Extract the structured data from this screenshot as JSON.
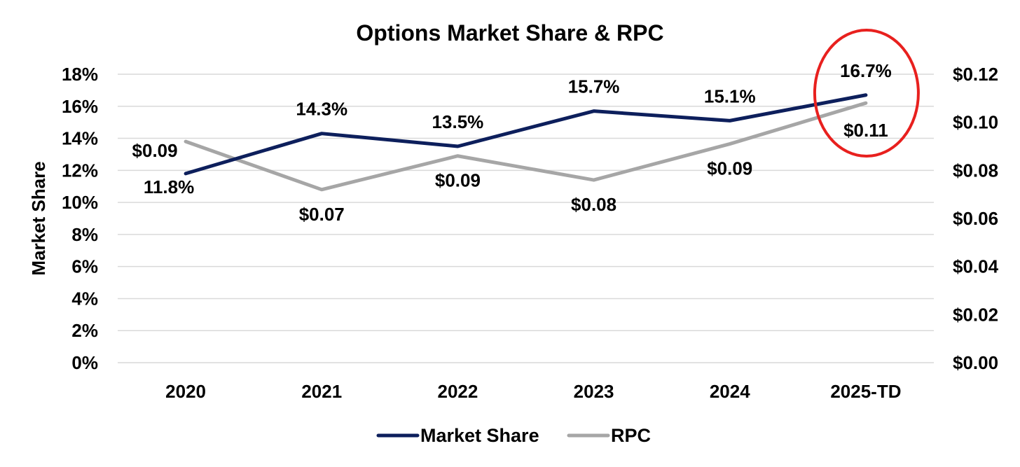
{
  "chart_data": {
    "type": "line",
    "title": "Options Market Share & RPC",
    "ylabel": "Market Share",
    "categories": [
      "2020",
      "2021",
      "2022",
      "2023",
      "2024",
      "2025-TD"
    ],
    "y_left": {
      "min": 0,
      "max": 18,
      "step": 2,
      "ticks": [
        "0%",
        "2%",
        "4%",
        "6%",
        "8%",
        "10%",
        "12%",
        "14%",
        "16%",
        "18%"
      ]
    },
    "y_right": {
      "min": 0,
      "max": 0.12,
      "step": 0.02,
      "ticks": [
        "$0.00",
        "$0.02",
        "$0.04",
        "$0.06",
        "$0.08",
        "$0.10",
        "$0.12"
      ]
    },
    "series": [
      {
        "name": "Market Share",
        "axis": "left",
        "color": "#0d1f5c",
        "values": [
          11.8,
          14.3,
          13.5,
          15.7,
          15.1,
          16.7
        ],
        "labels": [
          "11.8%",
          "14.3%",
          "13.5%",
          "15.7%",
          "15.1%",
          "16.7%"
        ]
      },
      {
        "name": "RPC",
        "axis": "right",
        "color": "#a6a6a6",
        "values": [
          0.092,
          0.072,
          0.086,
          0.076,
          0.091,
          0.108
        ],
        "labels": [
          "$0.09",
          "$0.07",
          "$0.09",
          "$0.08",
          "$0.09",
          "$0.11"
        ]
      }
    ],
    "highlight": {
      "category": "2025-TD",
      "shape": "ellipse",
      "color": "#e8201e"
    },
    "grid": true,
    "legend": "bottom"
  }
}
